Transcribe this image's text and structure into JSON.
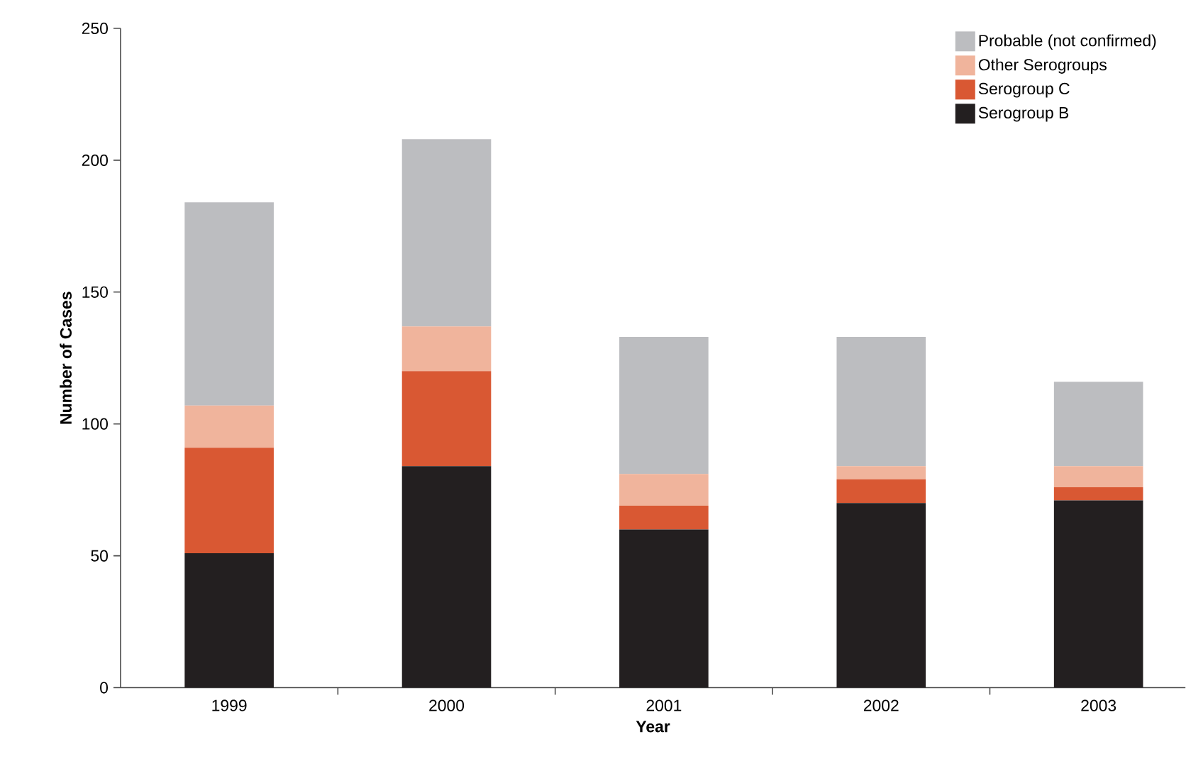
{
  "chart_data": {
    "type": "bar",
    "stacked": true,
    "xlabel": "Year",
    "ylabel": "Number of Cases",
    "categories": [
      "1999",
      "2000",
      "2001",
      "2002",
      "2003"
    ],
    "series": [
      {
        "name": "Serogroup B",
        "color": "#231f20",
        "values": [
          51,
          84,
          60,
          70,
          71
        ]
      },
      {
        "name": "Serogroup C",
        "color": "#d95833",
        "values": [
          40,
          36,
          9,
          9,
          5
        ]
      },
      {
        "name": "Other Serogroups",
        "color": "#f0b49c",
        "values": [
          16,
          17,
          12,
          5,
          8
        ]
      },
      {
        "name": "Probable (not confirmed)",
        "color": "#bcbdc0",
        "values": [
          77,
          71,
          52,
          49,
          32
        ]
      }
    ],
    "ylim": [
      0,
      250
    ],
    "yticks": [
      0,
      50,
      100,
      150,
      200,
      250
    ],
    "grid": false,
    "legend": "top right"
  }
}
